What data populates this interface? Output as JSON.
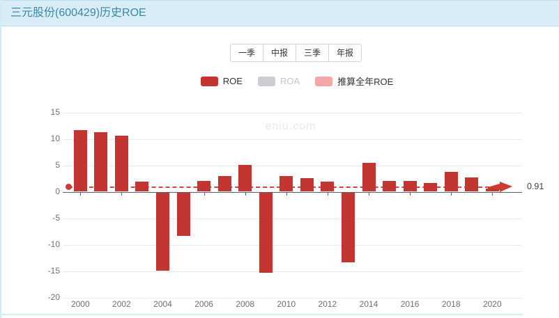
{
  "header": {
    "title": "三元股份(600429)历史ROE"
  },
  "toolbar": {
    "tabs": [
      {
        "id": "tab-q1",
        "label": "一季"
      },
      {
        "id": "tab-interim",
        "label": "中报"
      },
      {
        "id": "tab-q3",
        "label": "三季"
      },
      {
        "id": "tab-annual",
        "label": "年报"
      }
    ]
  },
  "legend": {
    "items": [
      {
        "id": "roe",
        "label": "ROE",
        "swatch": "#c23531",
        "text_color": "#333333",
        "active": true
      },
      {
        "id": "roa",
        "label": "ROA",
        "swatch": "#cbcdd1",
        "text_color": "#c3c5c9",
        "active": false
      },
      {
        "id": "estimated-roe",
        "label": "推算全年ROE",
        "swatch": "#f4a7a7",
        "text_color": "#333333",
        "active": true
      }
    ]
  },
  "watermark": {
    "text": "eniu.com"
  },
  "annotation": {
    "label": "0.91",
    "value": 0.91
  },
  "chart_data": {
    "type": "bar",
    "title": "三元股份(600429)历史ROE",
    "xlabel": "",
    "ylabel": "",
    "categories": [
      "2000",
      "2001",
      "2002",
      "2003",
      "2004",
      "2005",
      "2006",
      "2007",
      "2008",
      "2009",
      "2010",
      "2011",
      "2012",
      "2013",
      "2014",
      "2015",
      "2016",
      "2017",
      "2018",
      "2019",
      "2020",
      "2021"
    ],
    "series": [
      {
        "name": "ROE",
        "color": "#c23531",
        "values": [
          11.7,
          11.2,
          10.6,
          1.9,
          -14.8,
          -8.2,
          2.0,
          2.9,
          5.1,
          -15.2,
          3.0,
          2.6,
          1.9,
          -13.2,
          5.4,
          2.0,
          2.1,
          1.6,
          3.7,
          2.7,
          0.6,
          null
        ]
      }
    ],
    "estimate_line": {
      "name": "推算全年ROE",
      "year": "2021",
      "value": 0.91,
      "color": "#d8423a",
      "style": "dashed-with-start-dot-and-end-arrow"
    },
    "ylim": [
      -20,
      15
    ],
    "yticks": [
      15,
      10,
      5,
      0,
      -5,
      -10,
      -15,
      -20
    ],
    "xtick_labels": [
      "2000",
      "2002",
      "2004",
      "2006",
      "2008",
      "2010",
      "2012",
      "2014",
      "2016",
      "2018",
      "2020"
    ],
    "grid": true,
    "legend_position": "top"
  }
}
